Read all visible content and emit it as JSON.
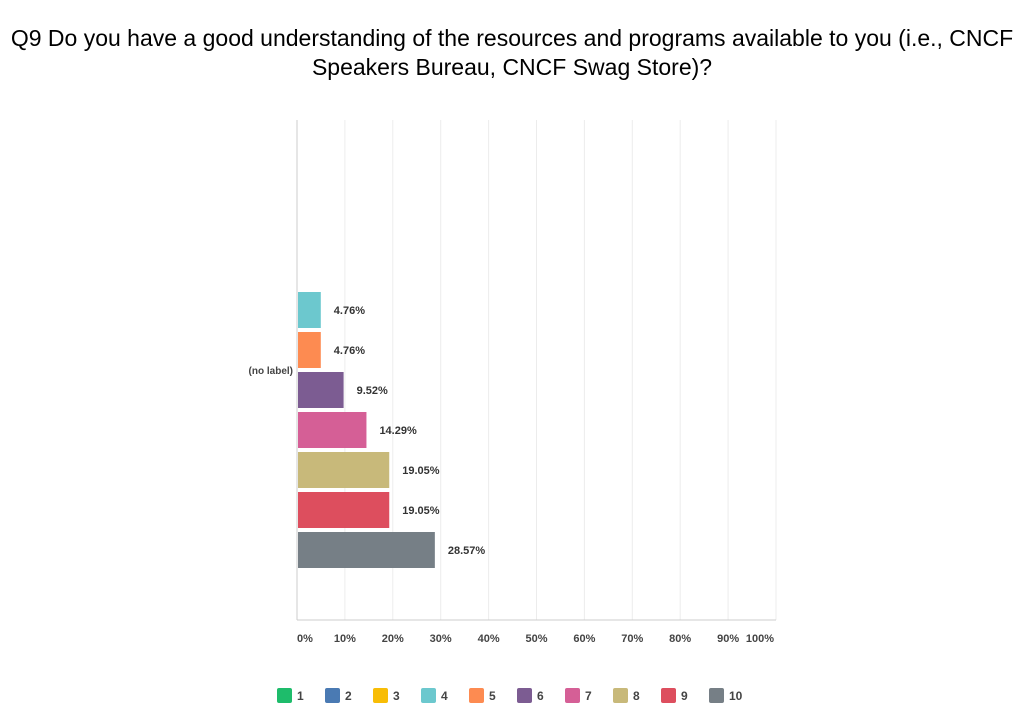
{
  "chart_data": {
    "type": "bar",
    "orientation": "horizontal",
    "title": "Q9 Do you have a good understanding of the resources and programs available to you (i.e., CNCF Speakers Bureau, CNCF Swag Store)?",
    "categories": [
      "(no label)"
    ],
    "xlim": [
      0,
      100
    ],
    "x_ticks": [
      "0%",
      "10%",
      "20%",
      "30%",
      "40%",
      "50%",
      "60%",
      "70%",
      "80%",
      "90%",
      "100%"
    ],
    "grid": true,
    "legend_position": "bottom",
    "series": [
      {
        "name": "1",
        "color": "#1ebc6b",
        "values": [
          0
        ],
        "label": ""
      },
      {
        "name": "2",
        "color": "#4a7ab3",
        "values": [
          0
        ],
        "label": ""
      },
      {
        "name": "3",
        "color": "#f8bd06",
        "values": [
          0
        ],
        "label": ""
      },
      {
        "name": "4",
        "color": "#6cc8ce",
        "values": [
          4.76
        ],
        "label": "4.76%"
      },
      {
        "name": "5",
        "color": "#fd8b51",
        "values": [
          4.76
        ],
        "label": "4.76%"
      },
      {
        "name": "6",
        "color": "#7c5c92",
        "values": [
          9.52
        ],
        "label": "9.52%"
      },
      {
        "name": "7",
        "color": "#d55f96",
        "values": [
          14.29
        ],
        "label": "14.29%"
      },
      {
        "name": "8",
        "color": "#c8b97a",
        "values": [
          19.05
        ],
        "label": "19.05%"
      },
      {
        "name": "9",
        "color": "#dd4e5e",
        "values": [
          19.05
        ],
        "label": "19.05%"
      },
      {
        "name": "10",
        "color": "#767f86",
        "values": [
          28.57
        ],
        "label": "28.57%"
      }
    ]
  }
}
